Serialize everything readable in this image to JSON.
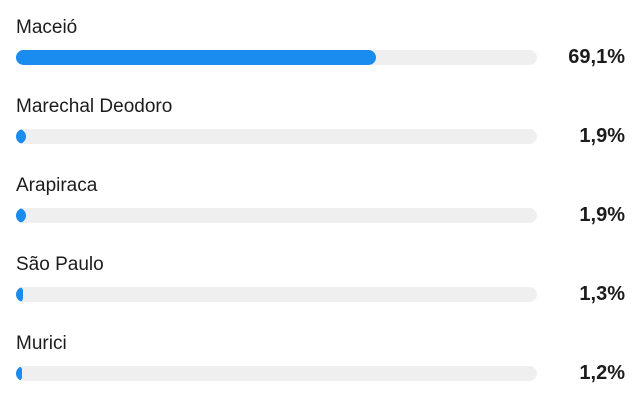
{
  "accent_color": "#1a8cf0",
  "track_color": "#efefef",
  "items": [
    {
      "label": "Maceió",
      "value_text": "69,1%",
      "value": 69.1
    },
    {
      "label": "Marechal Deodoro",
      "value_text": "1,9%",
      "value": 1.9
    },
    {
      "label": "Arapiraca",
      "value_text": "1,9%",
      "value": 1.9
    },
    {
      "label": "São Paulo",
      "value_text": "1,3%",
      "value": 1.3
    },
    {
      "label": "Murici",
      "value_text": "1,2%",
      "value": 1.2
    }
  ]
}
